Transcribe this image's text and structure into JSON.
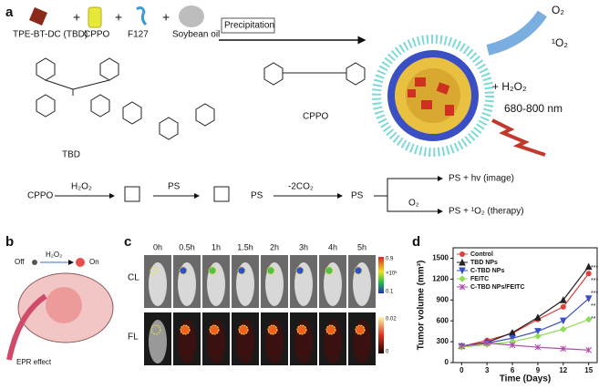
{
  "panel_a": {
    "label": "a",
    "reagents": [
      "TPE-BT-DC (TBD)",
      "CPPO",
      "F127",
      "Soybean oil"
    ],
    "plus": "+",
    "process": "Precipitation",
    "o2": "O₂",
    "singlet": "¹O₂",
    "h2o2": "+ H₂O₂",
    "wavelength": "680-800 nm",
    "tbd": "TBD",
    "cppo": "CPPO",
    "scheme": {
      "start": "CPPO",
      "reagent": "H₂O₂",
      "ps1": "PS",
      "ps2": "PS",
      "co2": "-2CO₂",
      "ps3": "PS",
      "image": "PS + hv (image)",
      "o2": "O₂",
      "therapy": "PS + ¹O₂ (therapy)"
    }
  },
  "panel_b": {
    "label": "b",
    "off": "Off",
    "h2o2": "H₂O₂",
    "on": "On",
    "epr": "EPR effect"
  },
  "panel_c": {
    "label": "c",
    "times": [
      "0h",
      "0.5h",
      "1h",
      "1.5h",
      "2h",
      "3h",
      "4h",
      "5h"
    ],
    "rows": [
      "CL",
      "FL"
    ],
    "cl_scale": [
      "0.9",
      "×10⁶",
      "0.1"
    ],
    "fl_scale": [
      "0.02",
      "0"
    ]
  },
  "panel_d": {
    "label": "d",
    "annotations": [
      "***",
      "***",
      "***",
      "**",
      "**"
    ]
  },
  "chart_data": {
    "type": "line",
    "xlabel": "Time (Days)",
    "ylabel": "Tumor volume (mm³)",
    "x": [
      0,
      3,
      6,
      9,
      12,
      15
    ],
    "xlim": [
      -1,
      16
    ],
    "xticks": [
      0,
      3,
      6,
      9,
      12,
      15
    ],
    "ylim": [
      0,
      1650
    ],
    "yticks": [
      0,
      300,
      600,
      900,
      1200,
      1500
    ],
    "legend": "upper-left",
    "series": [
      {
        "name": "Control",
        "color": "#e0403a",
        "marker": "circle",
        "values": [
          230,
          320,
          420,
          620,
          800,
          1280
        ]
      },
      {
        "name": "TBD NPs",
        "color": "#222222",
        "marker": "triangle",
        "values": [
          240,
          290,
          430,
          650,
          900,
          1380
        ]
      },
      {
        "name": "C-TBD NPs",
        "color": "#3b4fc4",
        "marker": "triangle-down",
        "values": [
          230,
          280,
          350,
          450,
          600,
          920
        ]
      },
      {
        "name": "FEITC",
        "color": "#8fdc55",
        "marker": "diamond",
        "values": [
          220,
          260,
          300,
          380,
          480,
          620
        ]
      },
      {
        "name": "C-TBD NPs/FEITC",
        "color": "#b04aa8",
        "marker": "star",
        "values": [
          240,
          280,
          250,
          220,
          200,
          180
        ]
      }
    ]
  }
}
